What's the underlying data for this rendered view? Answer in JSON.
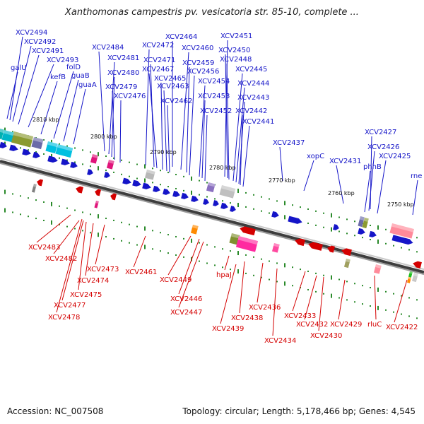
{
  "header": {
    "title": "Xanthomonas campestris pv. vesicatoria str. 85-10, complete ..."
  },
  "footer": {
    "accession": "Accession: NC_007508",
    "summary": "Topology: circular; Length: 5,178,466 bp; Genes: 4,545"
  },
  "colors": {
    "forward": "#1515c8",
    "reverse": "#d40000",
    "backbone": "#555555",
    "tick": "#2a8a2a"
  },
  "ruler_labels": [
    "2810 kbp",
    "2800 kbp",
    "2790 kbp",
    "2780 kbp",
    "2770 kbp",
    "2760 kbp",
    "2750 kbp"
  ],
  "forward_labels": [
    "XCV2494",
    "XCV2492",
    "XCV2491",
    "galU",
    "XCV2493",
    "kefB",
    "folD",
    "guaB",
    "guaA",
    "XCV2484",
    "XCV2481",
    "XCV2480",
    "XCV2479",
    "XCV2476",
    "XCV2464",
    "XCV2472",
    "XCV2460",
    "XCV2471",
    "XCV2467",
    "XCV2459",
    "XCV2465",
    "XCV2456",
    "XCV2463",
    "XCV2462",
    "XCV2451",
    "XCV2450",
    "XCV2448",
    "XCV2445",
    "XCV2454",
    "XCV2444",
    "XCV2453",
    "XCV2443",
    "XCV2452",
    "XCV2442",
    "XCV2441",
    "XCV2437",
    "xopC",
    "XCV2431",
    "XCV2427",
    "XCV2426",
    "phhB",
    "XCV2425",
    "rne"
  ],
  "reverse_labels": [
    "XCV2483",
    "XCV2482",
    "XCV2473",
    "XCV2474",
    "XCV2475",
    "XCV2477",
    "XCV2478",
    "XCV2461",
    "XCV2449",
    "XCV2446",
    "XCV2447",
    "hpaJ",
    "XCV2439",
    "XCV2438",
    "XCV2436",
    "XCV2434",
    "XCV2433",
    "XCV2432",
    "XCV2430",
    "XCV2429",
    "rluC",
    "XCV2422"
  ]
}
